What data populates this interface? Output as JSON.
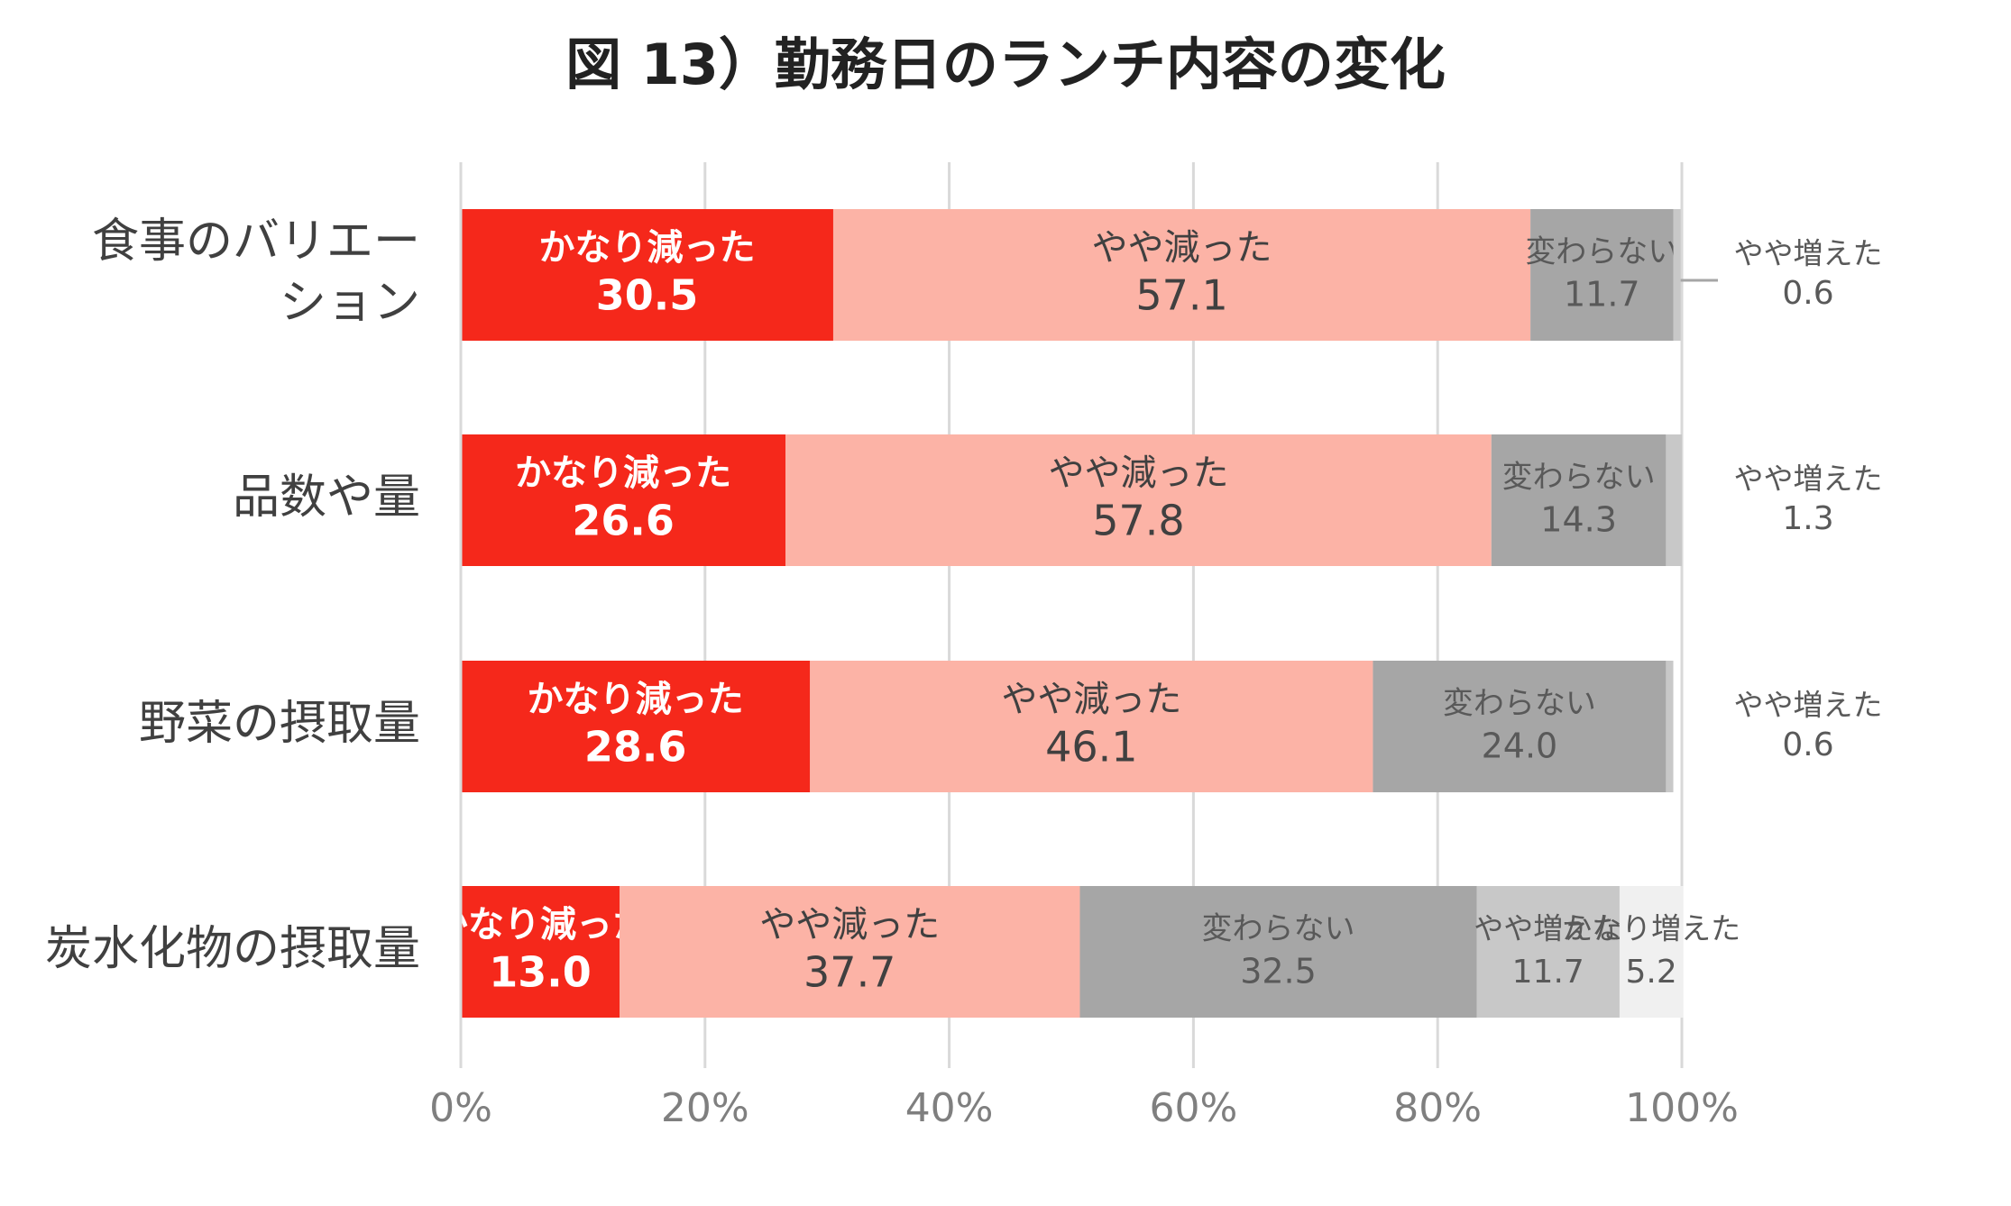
{
  "chart_data": {
    "type": "bar",
    "orientation": "horizontal",
    "stacked": true,
    "title": "図 13）勤務日のランチ内容の変化",
    "categories": [
      [
        "食事のバリエー",
        "ション"
      ],
      [
        "品数や量"
      ],
      [
        "野菜の摂取量"
      ],
      [
        "炭水化物の摂取量"
      ]
    ],
    "series": [
      {
        "name": "かなり減った",
        "values": [
          30.5,
          26.6,
          28.6,
          13.0
        ],
        "labels": [
          "30.5",
          "26.6",
          "28.6",
          "13.0"
        ],
        "color": "#f5281b"
      },
      {
        "name": "やや減った",
        "values": [
          57.1,
          57.8,
          46.1,
          37.7
        ],
        "labels": [
          "57.1",
          "57.8",
          "46.1",
          "37.7"
        ],
        "color": "#fcb3a6"
      },
      {
        "name": "変わらない",
        "values": [
          11.7,
          14.3,
          24.0,
          32.5
        ],
        "labels": [
          "11.7",
          "14.3",
          "24.0",
          "32.5"
        ],
        "color": "#a6a6a6"
      },
      {
        "name": "やや増えた",
        "values": [
          0.6,
          1.3,
          0.6,
          11.7
        ],
        "labels": [
          "0.6",
          "1.3",
          "0.6",
          "11.7"
        ],
        "color": "#c8c8c8"
      },
      {
        "name": "かなり増えた",
        "values": [
          0,
          0,
          0,
          5.2
        ],
        "labels": [
          "",
          "",
          "",
          "5.2"
        ],
        "color": "#f0f0f0"
      }
    ],
    "xlim": [
      0,
      100
    ],
    "xticks": [
      "0%",
      "20%",
      "40%",
      "60%",
      "80%",
      "100%"
    ],
    "grid": true,
    "legend": "none"
  }
}
